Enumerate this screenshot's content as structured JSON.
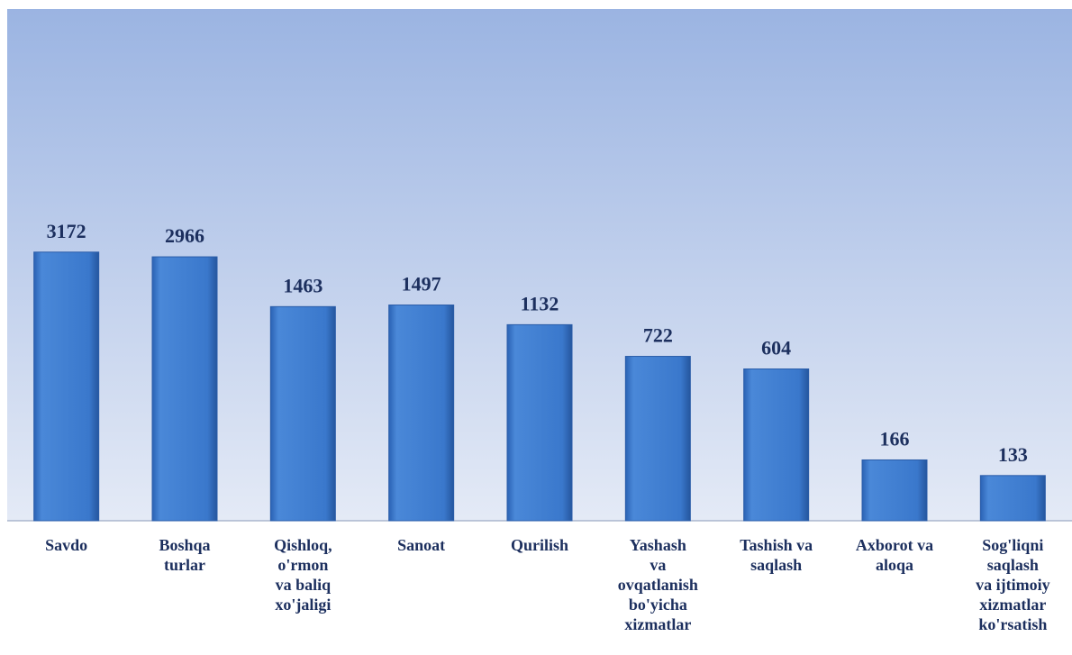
{
  "chart_data": {
    "type": "bar",
    "categories": [
      "Savdo",
      "Boshqa\nturlar",
      "Qishloq,\no'rmon\nva baliq\nxo'jaligi",
      "Sanoat",
      "Qurilish",
      "Yashash\nva\novqatlanish\nbo'yicha\nxizmatlar",
      "Tashish va\nsaqlash",
      "Axborot va\naloqa",
      "Sog'liqni\nsaqlash\nva ijtimoiy\nxizmatlar\nko'rsatish"
    ],
    "values": [
      3172,
      2966,
      1463,
      1497,
      1132,
      722,
      604,
      166,
      133
    ],
    "color": "#3a78cc",
    "ylim": [
      70,
      100000
    ],
    "log_scale": true
  }
}
